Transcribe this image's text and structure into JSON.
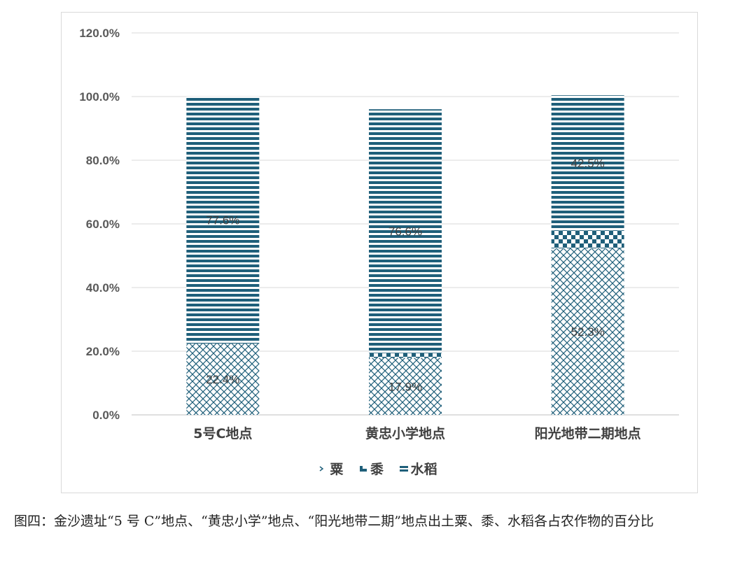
{
  "chart_data": {
    "type": "bar",
    "stacked": true,
    "categories": [
      "5号C地点",
      "黄忠小学地点",
      "阳光地带二期地点"
    ],
    "series": [
      {
        "name": "粟",
        "values": [
          22.4,
          17.9,
          52.3
        ],
        "labels": [
          "22.4%",
          "17.9%",
          "52.3%"
        ],
        "pattern": "crosshatch"
      },
      {
        "name": "黍",
        "values": [
          0,
          1.5,
          5.6
        ],
        "labels": [
          "",
          "",
          ""
        ],
        "pattern": "checker"
      },
      {
        "name": "水稻",
        "values": [
          77.6,
          76.6,
          42.5
        ],
        "labels": [
          "77.6%",
          "76.6%",
          "42.5%"
        ],
        "pattern": "hstripe"
      }
    ],
    "ylim": [
      0,
      120
    ],
    "yticks": [
      "0.0%",
      "20.0%",
      "40.0%",
      "60.0%",
      "80.0%",
      "100.0%",
      "120.0%"
    ],
    "grid": true,
    "legend_position": "bottom",
    "color": "#1f5f7a"
  },
  "caption": "图四：金沙遗址“5 号 C”地点、“黄忠小学”地点、“阳光地带二期”地点出土粟、黍、水稻各占农作物的百分比"
}
